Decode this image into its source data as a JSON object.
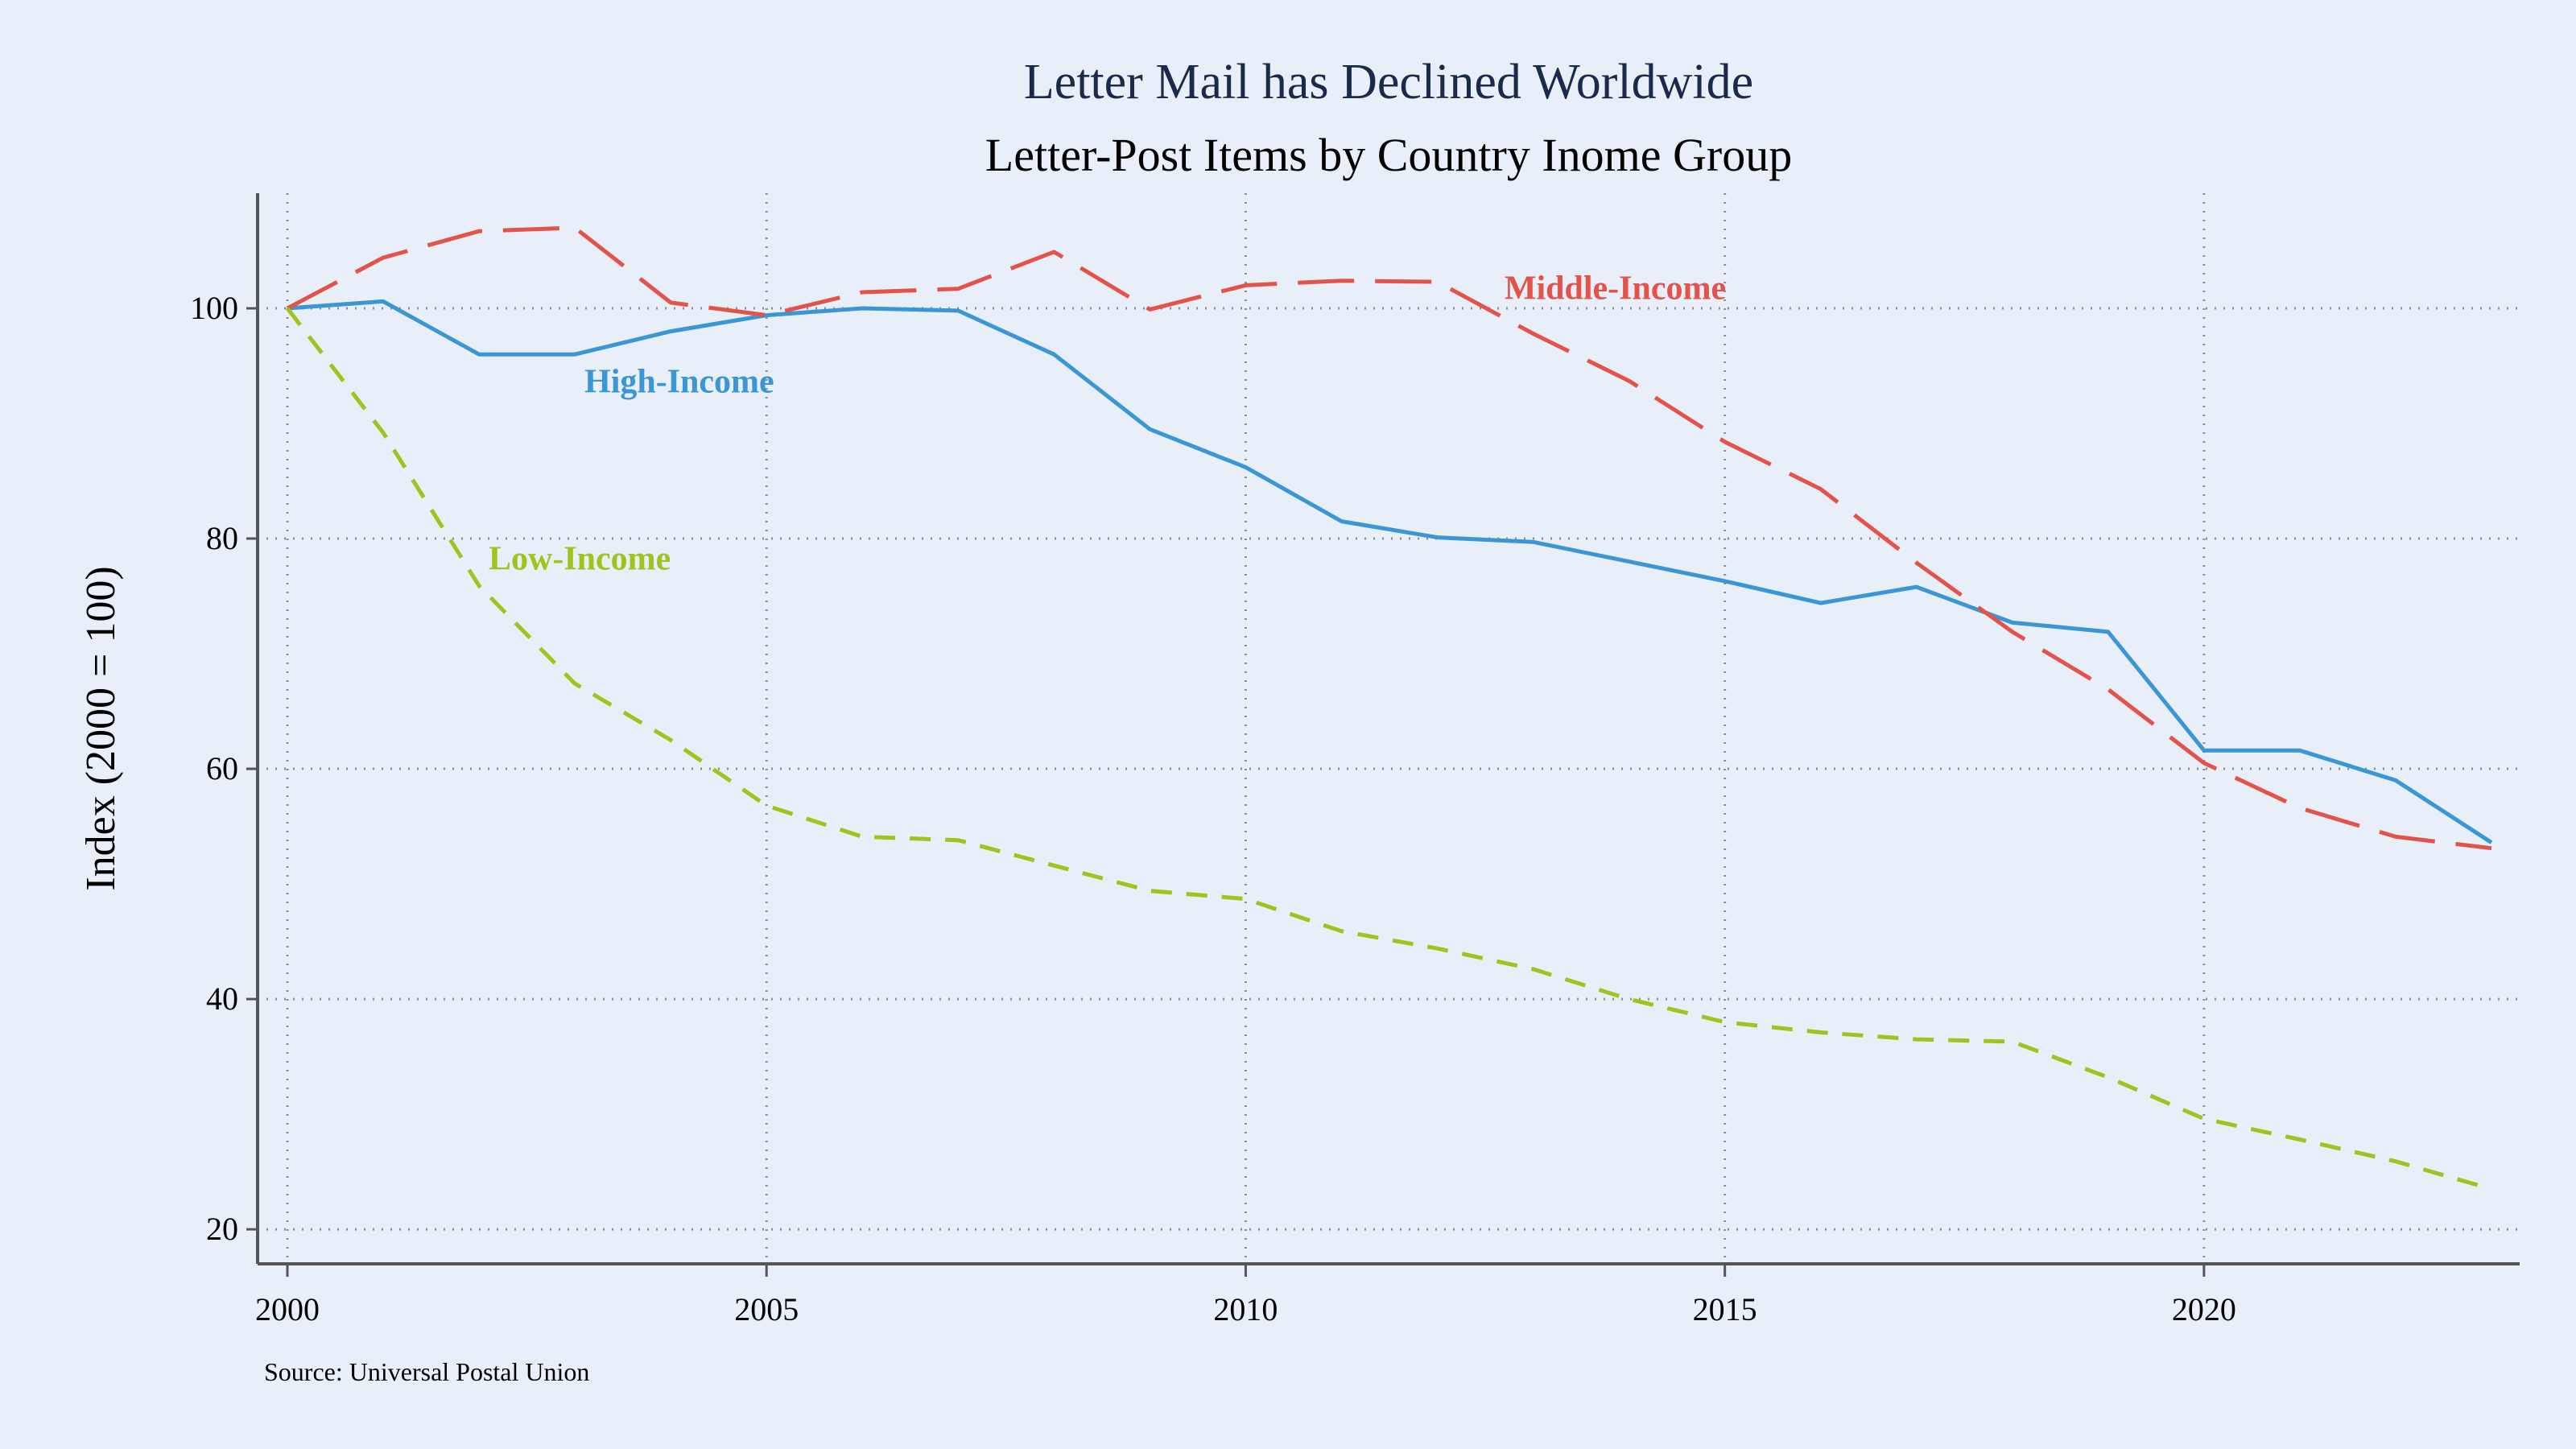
{
  "chart_data": {
    "type": "line",
    "title": "Letter Mail has Declined Worldwide",
    "subtitle": "Letter-Post Items by Country Inome Group",
    "xlabel": "",
    "ylabel": "Index (2000 = 100)",
    "xlim": [
      2000,
      2023
    ],
    "ylim": [
      17,
      110
    ],
    "xticks": [
      2000,
      2005,
      2010,
      2015,
      2020
    ],
    "yticks": [
      20,
      40,
      60,
      80,
      100
    ],
    "grid": true,
    "legend": "inline labels",
    "source": "Source: Universal Postal Union",
    "x": [
      2000,
      2001,
      2002,
      2003,
      2004,
      2005,
      2006,
      2007,
      2008,
      2009,
      2010,
      2011,
      2012,
      2013,
      2014,
      2015,
      2016,
      2017,
      2018,
      2019,
      2020,
      2021,
      2022,
      2023
    ],
    "series": [
      {
        "name": "High-Income",
        "color": "#3a96d4",
        "dash": "solid",
        "values": [
          100.0,
          100.6,
          96.0,
          96.0,
          98.0,
          99.4,
          100.0,
          99.8,
          96.0,
          89.5,
          86.2,
          81.5,
          80.1,
          79.7,
          78.0,
          76.3,
          74.4,
          75.8,
          72.7,
          71.9,
          61.6,
          61.6,
          59.0,
          53.6
        ]
      },
      {
        "name": "Middle-Income",
        "color": "#e4534a",
        "dash": "longdash",
        "values": [
          100.0,
          104.4,
          106.7,
          107.0,
          100.5,
          99.4,
          101.4,
          101.7,
          104.9,
          99.9,
          102.0,
          102.4,
          102.3,
          97.8,
          93.7,
          88.4,
          84.3,
          77.9,
          71.9,
          66.9,
          60.5,
          56.6,
          54.1,
          53.1
        ]
      },
      {
        "name": "Low-Income",
        "color": "#9fc41e",
        "dash": "shortdash",
        "values": [
          100.0,
          89.2,
          75.9,
          67.4,
          62.5,
          56.8,
          54.1,
          53.8,
          51.6,
          49.4,
          48.7,
          45.9,
          44.4,
          42.6,
          40.0,
          38.0,
          37.1,
          36.5,
          36.3,
          33.2,
          29.6,
          27.8,
          25.9,
          23.5
        ]
      }
    ]
  }
}
